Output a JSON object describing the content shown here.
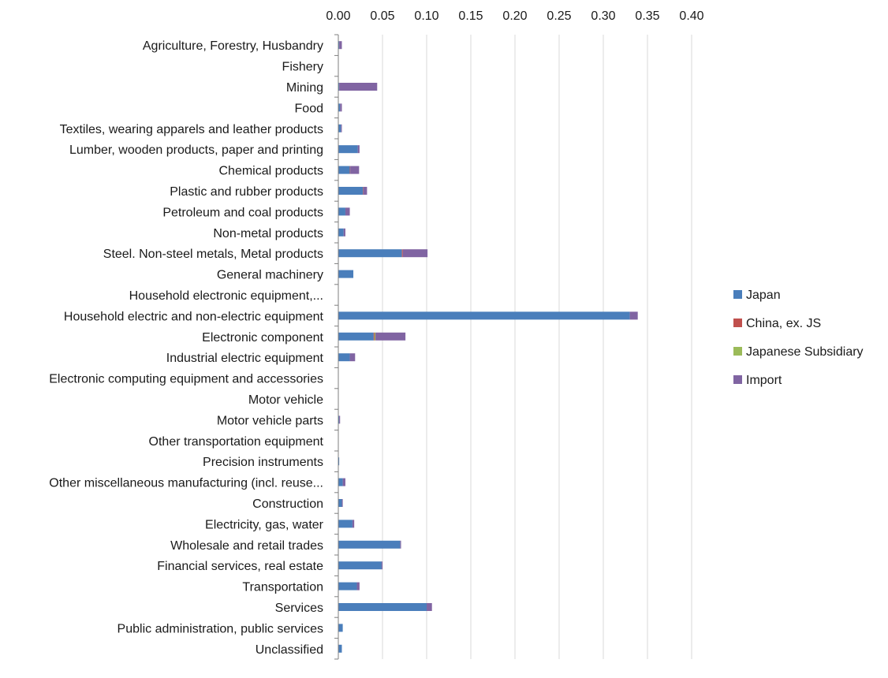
{
  "chart_data": {
    "type": "bar",
    "orientation": "horizontal",
    "stacked": true,
    "title": "",
    "xlabel": "",
    "ylabel": "",
    "xlim": [
      0,
      0.4
    ],
    "x_ticks": [
      "0.00",
      "0.05",
      "0.10",
      "0.15",
      "0.20",
      "0.25",
      "0.30",
      "0.35",
      "0.40"
    ],
    "x_tick_values": [
      0,
      0.05,
      0.1,
      0.15,
      0.2,
      0.25,
      0.3,
      0.35,
      0.4
    ],
    "x_axis_position": "top",
    "grid": "vertical",
    "legend_position": "right",
    "categories": [
      "Agriculture, Forestry, Husbandry",
      "Fishery",
      "Mining",
      "Food",
      "Textiles, wearing apparels and leather products",
      "Lumber, wooden products, paper and printing",
      "Chemical products",
      "Plastic and rubber products",
      "Petroleum and coal products",
      "Non-metal products",
      "Steel. Non-steel metals, Metal products",
      "General machinery",
      "Household electronic equipment,...",
      "Household electric and non-electric equipment",
      "Electronic component",
      "Industrial electric equipment",
      "Electronic computing equipment and accessories",
      "Motor vehicle",
      "Motor vehicle parts",
      "Other transportation equipment",
      "Precision instruments",
      "Other miscellaneous manufacturing (incl. reuse...",
      "Construction",
      "Electricity, gas, water",
      "Wholesale and retail trades",
      "Financial services, real estate",
      "Transportation",
      "Services",
      "Public administration, public services",
      "Unclassified"
    ],
    "series": [
      {
        "name": "Japan",
        "color": "#4a7ebb",
        "values": [
          0.001,
          0.0,
          0.001,
          0.002,
          0.003,
          0.022,
          0.013,
          0.028,
          0.008,
          0.006,
          0.072,
          0.017,
          0.0,
          0.33,
          0.04,
          0.013,
          0.0,
          0.0,
          0.001,
          0.0,
          0.001,
          0.005,
          0.004,
          0.016,
          0.07,
          0.049,
          0.021,
          0.1,
          0.005,
          0.004
        ]
      },
      {
        "name": "China, ex. JS",
        "color": "#c0504d",
        "values": [
          0.0,
          0.0,
          0.0,
          0.0,
          0.0,
          0.0,
          0.0005,
          0.0005,
          0.0,
          0.0,
          0.001,
          0.0,
          0.0,
          0.0,
          0.001,
          0.0,
          0.0,
          0.0,
          0.0,
          0.0,
          0.0,
          0.0,
          0.0,
          0.0,
          0.0,
          0.0,
          0.0,
          0.0,
          0.0,
          0.0
        ]
      },
      {
        "name": "Japanese Subsidiary",
        "color": "#9bbb59",
        "values": [
          0.0,
          0.0,
          0.0,
          0.0,
          0.0,
          0.0,
          0.0,
          0.0,
          0.0,
          0.0,
          0.0,
          0.0,
          0.0,
          0.0,
          0.001,
          0.0,
          0.0,
          0.0,
          0.0,
          0.0,
          0.0,
          0.0,
          0.0,
          0.0,
          0.0,
          0.0,
          0.0,
          0.0,
          0.0,
          0.0
        ]
      },
      {
        "name": "Import",
        "color": "#8064a2",
        "values": [
          0.003,
          0.0,
          0.043,
          0.002,
          0.001,
          0.002,
          0.01,
          0.004,
          0.005,
          0.002,
          0.028,
          0.0,
          0.0,
          0.009,
          0.034,
          0.006,
          0.0,
          0.0,
          0.001,
          0.0,
          0.0,
          0.003,
          0.001,
          0.002,
          0.001,
          0.001,
          0.003,
          0.006,
          0.0,
          0.0
        ]
      }
    ]
  }
}
